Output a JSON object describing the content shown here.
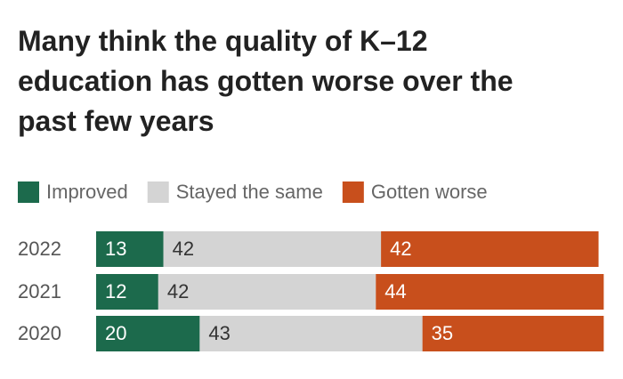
{
  "chart_data": {
    "type": "stacked-bar",
    "orientation": "horizontal",
    "title": "Many think the quality of K–12 education has gotten worse over the past few years",
    "categories": [
      "2022",
      "2021",
      "2020"
    ],
    "series": [
      {
        "name": "Improved",
        "color": "#1c6a4c",
        "values": [
          13,
          12,
          20
        ]
      },
      {
        "name": "Stayed the same",
        "color": "#d4d4d4",
        "values": [
          42,
          42,
          43
        ]
      },
      {
        "name": "Gotten worse",
        "color": "#c84f1c",
        "values": [
          42,
          44,
          35
        ]
      }
    ]
  }
}
